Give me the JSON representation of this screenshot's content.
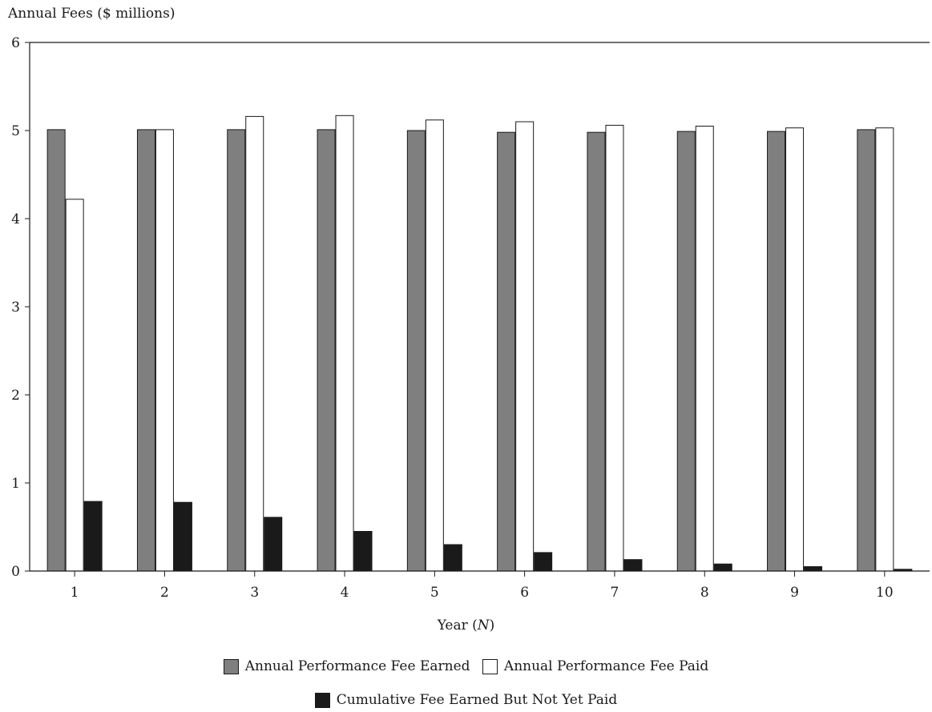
{
  "chart_data": {
    "type": "bar",
    "ylabel": "Annual Fees ($ millions)",
    "xlabel_prefix": "Year (",
    "xlabel_var": "N",
    "xlabel_suffix": ")",
    "categories": [
      "1",
      "2",
      "3",
      "4",
      "5",
      "6",
      "7",
      "8",
      "9",
      "10"
    ],
    "ylim": [
      0,
      6
    ],
    "yticks": [
      "0",
      "1",
      "2",
      "3",
      "4",
      "5",
      "6"
    ],
    "grid": false,
    "legend_position": "bottom",
    "series": [
      {
        "name": "Annual Performance Fee Earned",
        "color": "#7f7f7f",
        "values": [
          5.01,
          5.01,
          5.01,
          5.01,
          5.0,
          4.98,
          4.98,
          4.99,
          4.99,
          5.01
        ]
      },
      {
        "name": "Annual Performance Fee Paid",
        "color": "#ffffff",
        "values": [
          4.22,
          5.01,
          5.16,
          5.17,
          5.12,
          5.1,
          5.06,
          5.05,
          5.03,
          5.03
        ]
      },
      {
        "name": "Cumulative Fee Earned But Not Yet Paid",
        "color": "#1a1a1a",
        "values": [
          0.79,
          0.78,
          0.61,
          0.45,
          0.3,
          0.21,
          0.13,
          0.08,
          0.05,
          0.02
        ]
      }
    ]
  }
}
